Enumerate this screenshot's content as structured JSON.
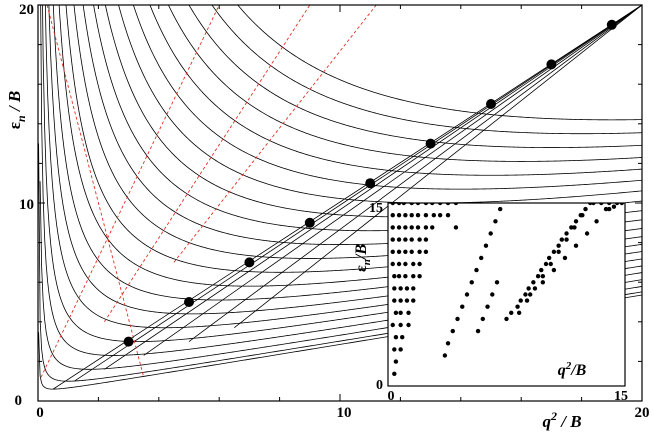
{
  "chart_data": [
    {
      "type": "line",
      "title": "",
      "xlabel": "q2 / B",
      "ylabel": "εn / B",
      "xlim": [
        0,
        20
      ],
      "ylim": [
        0,
        20
      ],
      "x_ticks": [
        "0",
        "10",
        "20"
      ],
      "y_ticks": [
        "0",
        "10",
        "20"
      ],
      "grid": false,
      "curve_family": {
        "description": "parabolic level curves eps = (x - a_n)^2/(4x) + b_n",
        "a": [
          0.5,
          1.0,
          1.7,
          2.5,
          3.3,
          4.2,
          5.1,
          6.0,
          7.0,
          8.0,
          9.0,
          10.0,
          11.0,
          12.0,
          13.0,
          14.0,
          15.0,
          16.0,
          17.0,
          18.0,
          19.0
        ],
        "b": [
          0.6,
          1.0,
          1.6,
          2.3,
          3.0,
          3.7,
          4.4,
          5.1,
          5.8,
          6.5,
          7.2,
          7.9,
          8.6,
          9.3,
          10.0,
          10.7,
          11.4,
          12.1,
          12.8,
          13.5,
          14.2
        ]
      },
      "rays": {
        "description": "nearly straight bands converging toward (20,20)",
        "x_start": [
          0.5,
          1.2,
          2.2,
          3.5,
          5.0,
          6.5
        ],
        "y_start": [
          0.6,
          1.0,
          1.6,
          2.3,
          3.0,
          3.7
        ]
      },
      "red_dashed": {
        "description": "red dashed guide lines",
        "lines": [
          {
            "x": [
              0.3,
              3.5
            ],
            "y": [
              20,
              1.2
            ]
          },
          {
            "x": [
              0.1,
              6.0
            ],
            "y": [
              1.2,
              20
            ]
          },
          {
            "x": [
              2.2,
              9.0
            ],
            "y": [
              4.0,
              20
            ]
          },
          {
            "x": [
              4.5,
              11.2
            ],
            "y": [
              7.0,
              20
            ]
          }
        ]
      },
      "markers": {
        "x": [
          3,
          5,
          7,
          9,
          11,
          13,
          15,
          17,
          19
        ],
        "y": [
          3,
          5,
          7,
          9,
          11,
          13,
          15,
          17,
          19
        ]
      }
    },
    {
      "type": "scatter",
      "title": "",
      "xlabel": "q2/B",
      "ylabel": "εn/B",
      "xlim": [
        0,
        15
      ],
      "ylim": [
        0,
        15
      ],
      "x_ticks": [
        "0",
        "15"
      ],
      "y_ticks": [
        "0",
        "15"
      ],
      "grid": false,
      "points": [
        [
          0.4,
          1.0
        ],
        [
          0.5,
          2.0
        ],
        [
          0.4,
          3.0
        ],
        [
          0.5,
          4.0
        ],
        [
          0.3,
          5.0
        ],
        [
          0.5,
          6.0
        ],
        [
          0.4,
          7.0
        ],
        [
          0.4,
          8.0
        ],
        [
          0.4,
          9.0
        ],
        [
          0.3,
          10.0
        ],
        [
          0.3,
          11.0
        ],
        [
          0.3,
          12.0
        ],
        [
          0.3,
          13.0
        ],
        [
          0.3,
          14.0
        ],
        [
          0.3,
          15.0
        ],
        [
          0.8,
          3.0
        ],
        [
          0.9,
          4.0
        ],
        [
          0.8,
          5.0
        ],
        [
          0.8,
          6.0
        ],
        [
          0.8,
          7.0
        ],
        [
          0.8,
          8.0
        ],
        [
          0.7,
          9.0
        ],
        [
          0.7,
          10.0
        ],
        [
          0.7,
          11.0
        ],
        [
          0.7,
          12.0
        ],
        [
          0.7,
          13.0
        ],
        [
          0.7,
          14.0
        ],
        [
          0.7,
          15.0
        ],
        [
          1.3,
          5.0
        ],
        [
          1.3,
          6.0
        ],
        [
          1.2,
          7.0
        ],
        [
          1.2,
          8.0
        ],
        [
          1.1,
          9.0
        ],
        [
          1.1,
          10.0
        ],
        [
          1.1,
          11.0
        ],
        [
          1.1,
          12.0
        ],
        [
          1.1,
          13.0
        ],
        [
          1.1,
          14.0
        ],
        [
          1.0,
          15.0
        ],
        [
          1.6,
          7.0
        ],
        [
          1.6,
          8.0
        ],
        [
          1.6,
          9.0
        ],
        [
          1.6,
          10.0
        ],
        [
          1.5,
          11.0
        ],
        [
          1.5,
          12.0
        ],
        [
          1.5,
          13.0
        ],
        [
          1.5,
          14.0
        ],
        [
          1.5,
          15.0
        ],
        [
          2.0,
          9.0
        ],
        [
          2.0,
          10.0
        ],
        [
          2.0,
          11.0
        ],
        [
          2.0,
          12.0
        ],
        [
          1.9,
          13.0
        ],
        [
          1.9,
          14.0
        ],
        [
          1.9,
          15.0
        ],
        [
          2.4,
          11.0
        ],
        [
          2.4,
          12.0
        ],
        [
          2.4,
          13.0
        ],
        [
          2.4,
          14.0
        ],
        [
          2.4,
          15.0
        ],
        [
          2.8,
          13.0
        ],
        [
          2.9,
          14.0
        ],
        [
          2.8,
          15.0
        ],
        [
          3.3,
          14.0
        ],
        [
          3.3,
          15.0
        ],
        [
          3.8,
          14.0
        ],
        [
          3.8,
          15.0
        ],
        [
          4.3,
          13.0
        ],
        [
          4.3,
          15.0
        ],
        [
          3.6,
          2.5
        ],
        [
          3.8,
          3.5
        ],
        [
          4.1,
          4.5
        ],
        [
          4.4,
          5.5
        ],
        [
          4.7,
          6.5
        ],
        [
          5.0,
          7.5
        ],
        [
          5.3,
          8.5
        ],
        [
          5.6,
          9.5
        ],
        [
          5.9,
          10.5
        ],
        [
          6.2,
          11.5
        ],
        [
          6.5,
          12.5
        ],
        [
          6.8,
          13.5
        ],
        [
          7.1,
          14.5
        ],
        [
          5.7,
          4.5
        ],
        [
          6.0,
          5.5
        ],
        [
          6.3,
          6.5
        ],
        [
          6.6,
          7.5
        ],
        [
          6.9,
          8.5
        ],
        [
          7.5,
          5.5
        ],
        [
          7.8,
          6.0
        ],
        [
          8.2,
          6.5
        ],
        [
          8.4,
          7.0
        ],
        [
          8.7,
          7.5
        ],
        [
          8.9,
          8.0
        ],
        [
          9.2,
          8.5
        ],
        [
          9.5,
          9.0
        ],
        [
          9.7,
          9.5
        ],
        [
          10.0,
          10.0
        ],
        [
          10.2,
          10.5
        ],
        [
          10.5,
          11.0
        ],
        [
          10.8,
          11.5
        ],
        [
          11.0,
          12.0
        ],
        [
          11.3,
          12.5
        ],
        [
          11.6,
          13.0
        ],
        [
          11.9,
          13.5
        ],
        [
          12.2,
          14.0
        ],
        [
          12.5,
          14.5
        ],
        [
          12.8,
          15.0
        ],
        [
          8.3,
          6.0
        ],
        [
          8.8,
          7.0
        ],
        [
          9.3,
          8.0
        ],
        [
          9.8,
          9.0
        ],
        [
          10.3,
          10.0
        ],
        [
          10.8,
          11.0
        ],
        [
          11.3,
          12.0
        ],
        [
          11.8,
          13.0
        ],
        [
          12.3,
          14.0
        ],
        [
          9.0,
          7.5
        ],
        [
          9.8,
          8.5
        ],
        [
          10.5,
          9.5
        ],
        [
          11.2,
          10.5
        ],
        [
          11.9,
          11.5
        ],
        [
          12.6,
          12.5
        ],
        [
          13.2,
          13.5
        ],
        [
          13.8,
          14.5
        ],
        [
          13.0,
          15.0
        ],
        [
          13.5,
          15.0
        ],
        [
          14.0,
          15.0
        ],
        [
          14.5,
          15.0
        ],
        [
          14.8,
          15.0
        ],
        [
          14.0,
          14.5
        ],
        [
          14.3,
          14.7
        ]
      ]
    }
  ],
  "main": {
    "x_ticks": [
      "0",
      "10",
      "20"
    ],
    "y_ticks": [
      "0",
      "10",
      "20"
    ],
    "ylabel": {
      "sym": "ε",
      "sub": "n",
      "rest": " / B"
    },
    "xlabel": {
      "sym": "q",
      "sup": "2",
      "rest": " / B"
    }
  },
  "inset": {
    "x_ticks": [
      "0",
      "15"
    ],
    "y_ticks": [
      "0",
      "15"
    ],
    "ylabel": {
      "sym": "ε",
      "sub": "n",
      "rest": "/B"
    },
    "xlabel": {
      "sym": "q",
      "sup": "2",
      "rest": "/B"
    }
  }
}
